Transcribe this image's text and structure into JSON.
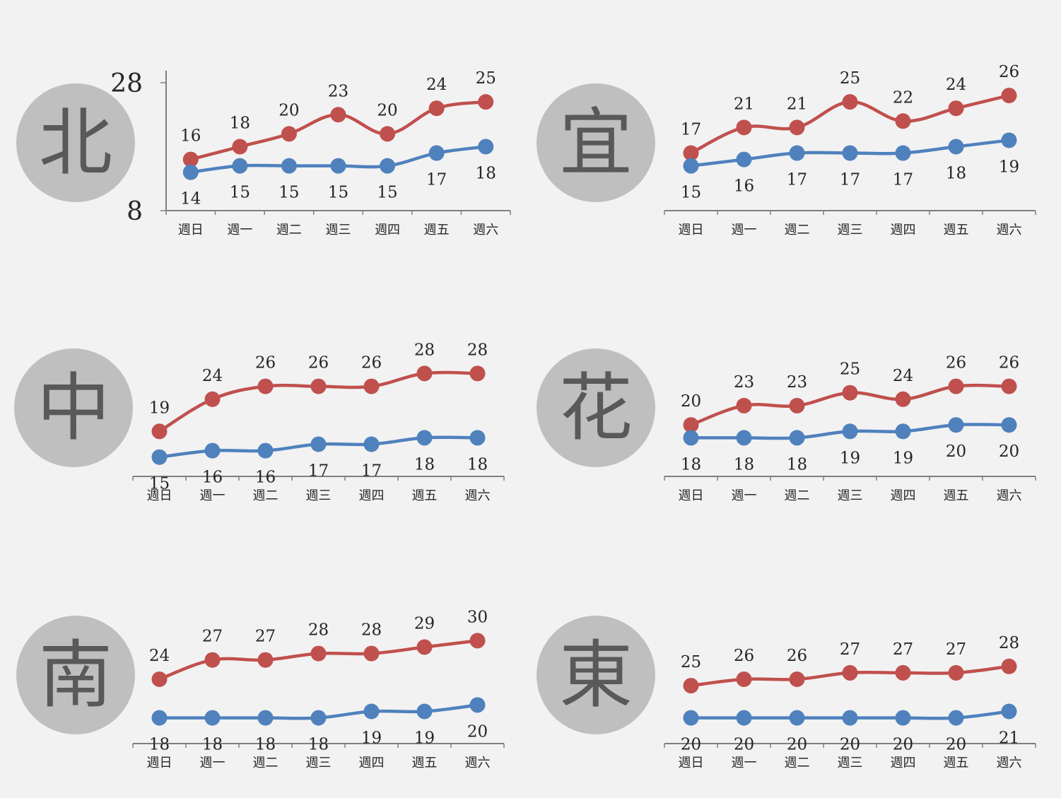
{
  "colors": {
    "high": "#c0504d",
    "low": "#4f81bd",
    "badge_fill": "#bfbfbf",
    "axis": "#7f7f7f",
    "background": "#f2f2f2"
  },
  "chart_data": [
    {
      "type": "line",
      "region": "北",
      "categories": [
        "週日",
        "週一",
        "週二",
        "週三",
        "週四",
        "週五",
        "週六"
      ],
      "series": [
        {
          "key": "high",
          "values": [
            16,
            18,
            20,
            23,
            20,
            24,
            25
          ]
        },
        {
          "key": "low",
          "values": [
            14,
            15,
            15,
            15,
            15,
            17,
            18
          ]
        }
      ],
      "ylim": [
        8,
        28
      ],
      "yticks": [
        "28",
        "8"
      ],
      "show_y_axis": true
    },
    {
      "type": "line",
      "region": "宜",
      "categories": [
        "週日",
        "週一",
        "週二",
        "週三",
        "週四",
        "週五",
        "週六"
      ],
      "series": [
        {
          "key": "high",
          "values": [
            17,
            21,
            21,
            25,
            22,
            24,
            26
          ]
        },
        {
          "key": "low",
          "values": [
            15,
            16,
            17,
            17,
            17,
            18,
            19
          ]
        }
      ],
      "ylim": [
        8,
        28
      ],
      "show_y_axis": false
    },
    {
      "type": "line",
      "region": "中",
      "categories": [
        "週日",
        "週一",
        "週二",
        "週三",
        "週四",
        "週五",
        "週六"
      ],
      "series": [
        {
          "key": "high",
          "values": [
            19,
            24,
            26,
            26,
            26,
            28,
            28
          ]
        },
        {
          "key": "low",
          "values": [
            15,
            16,
            16,
            17,
            17,
            18,
            18
          ]
        }
      ],
      "ylim": [
        12,
        32
      ],
      "show_y_axis": false
    },
    {
      "type": "line",
      "region": "花",
      "categories": [
        "週日",
        "週一",
        "週二",
        "週三",
        "週四",
        "週五",
        "週六"
      ],
      "series": [
        {
          "key": "high",
          "values": [
            20,
            23,
            23,
            25,
            24,
            26,
            26
          ]
        },
        {
          "key": "low",
          "values": [
            18,
            18,
            18,
            19,
            19,
            20,
            20
          ]
        }
      ],
      "ylim": [
        12,
        32
      ],
      "show_y_axis": false
    },
    {
      "type": "line",
      "region": "南",
      "categories": [
        "週日",
        "週一",
        "週二",
        "週三",
        "週四",
        "週五",
        "週六"
      ],
      "series": [
        {
          "key": "high",
          "values": [
            24,
            27,
            27,
            28,
            28,
            29,
            30
          ]
        },
        {
          "key": "low",
          "values": [
            18,
            18,
            18,
            18,
            19,
            19,
            20
          ]
        }
      ],
      "ylim": [
        14,
        34
      ],
      "show_y_axis": false
    },
    {
      "type": "line",
      "region": "東",
      "categories": [
        "週日",
        "週一",
        "週二",
        "週三",
        "週四",
        "週五",
        "週六"
      ],
      "series": [
        {
          "key": "high",
          "values": [
            25,
            26,
            26,
            27,
            27,
            27,
            28
          ]
        },
        {
          "key": "low",
          "values": [
            20,
            20,
            20,
            20,
            20,
            20,
            21
          ]
        }
      ],
      "ylim": [
        16,
        36
      ],
      "show_y_axis": false
    }
  ]
}
